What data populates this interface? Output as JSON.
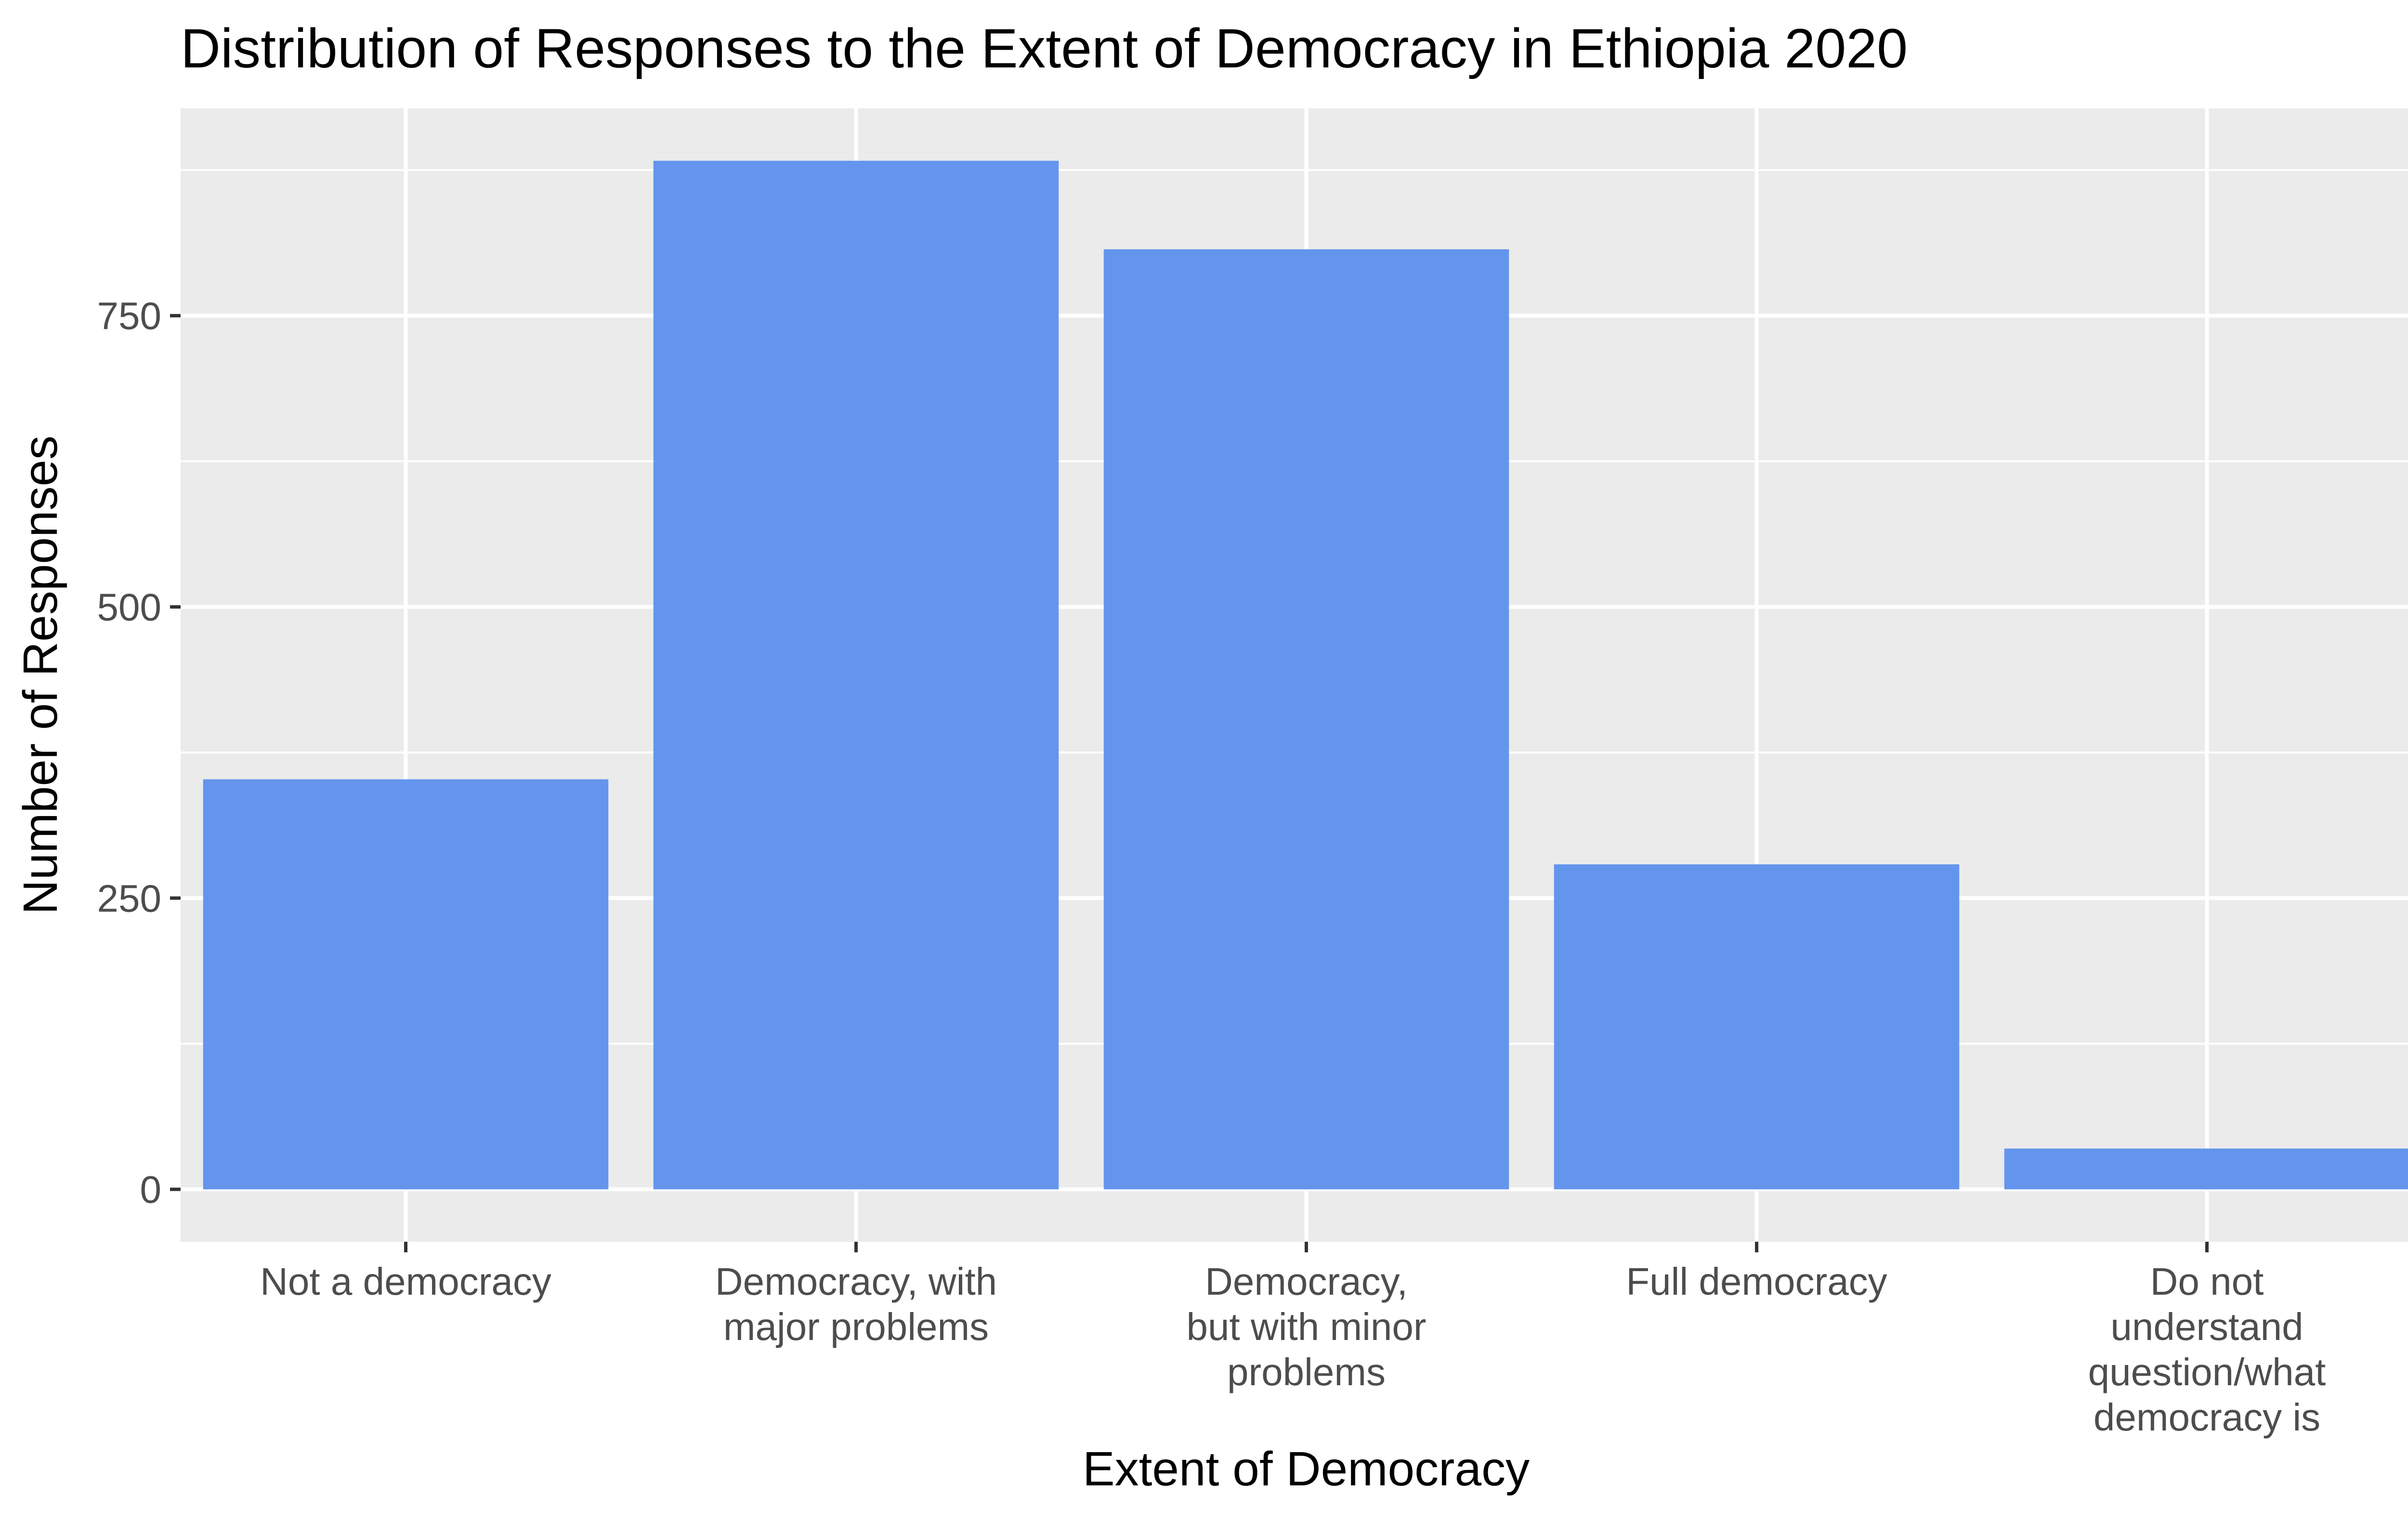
{
  "chart_data": {
    "type": "bar",
    "title": "Distribution of Responses to the Extent of Democracy in Ethiopia 2020",
    "xlabel": "Extent of Democracy",
    "ylabel": "Number of Responses",
    "categories": [
      "Not a democracy",
      "Democracy, with major problems",
      "Democracy, but with minor problems",
      "Full democracy",
      "Do not understand question/what democracy is"
    ],
    "category_label_lines": [
      [
        "Not a democracy"
      ],
      [
        "Democracy, with",
        "major problems"
      ],
      [
        "Democracy,",
        "but with minor",
        "problems"
      ],
      [
        "Full democracy"
      ],
      [
        "Do not",
        "understand",
        "question/what",
        "democracy is"
      ]
    ],
    "values": [
      352,
      883,
      807,
      279,
      35
    ],
    "ylim": [
      -45,
      928
    ],
    "yticks": [
      0,
      250,
      500,
      750
    ],
    "ytick_labels": [
      "0",
      "250",
      "500",
      "750"
    ],
    "grid": true,
    "colors": {
      "bar": "#6495ED",
      "panel": "#EBEBEB",
      "grid": "#FFFFFF",
      "tick": "#333333"
    }
  }
}
